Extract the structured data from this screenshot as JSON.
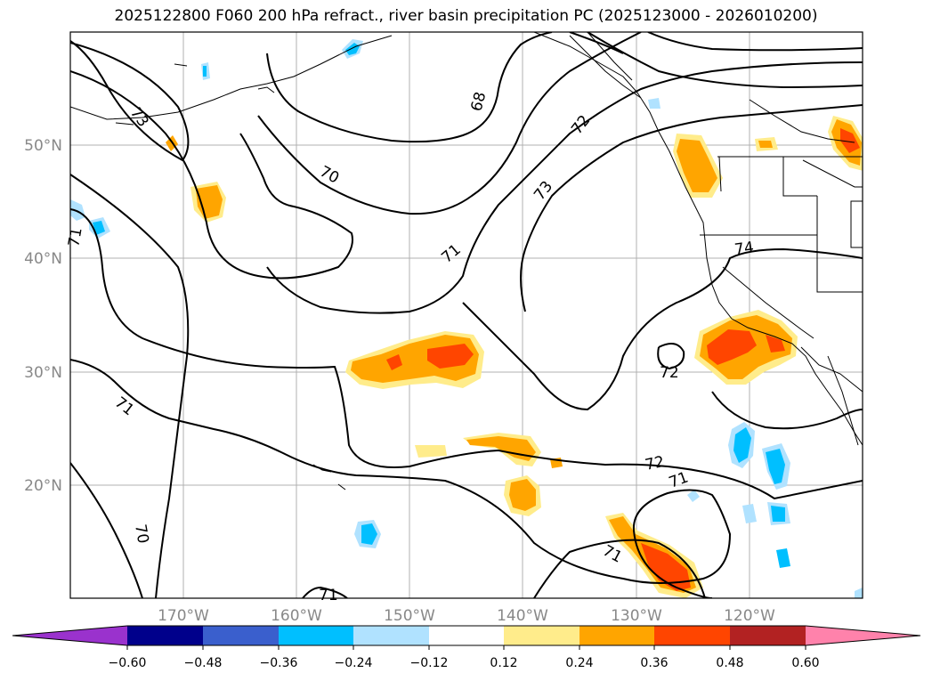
{
  "title": "2025122800 F060 200 hPa refract., river basin precipitation PC (2025123000 - 2026010200)",
  "lat_labels": [
    "50°N",
    "40°N",
    "30°N",
    "20°N"
  ],
  "lon_labels": [
    "170°W",
    "160°W",
    "150°W",
    "140°W",
    "130°W",
    "120°W"
  ],
  "contour_labels": [
    "73",
    "68",
    "72",
    "70",
    "73",
    "71",
    "71",
    "74",
    "72",
    "71",
    "72",
    "71",
    "70",
    "71",
    "71"
  ],
  "colorbar": {
    "ticks": [
      "−0.60",
      "−0.48",
      "−0.36",
      "−0.24",
      "−0.12",
      "0.12",
      "0.24",
      "0.36",
      "0.48",
      "0.60"
    ],
    "colors": [
      "#9a32cd",
      "#00008b",
      "#3a5fcd",
      "#00bfff",
      "#b0e2ff",
      "#ffffff",
      "#ffec8b",
      "#ffa500",
      "#ff4500",
      "#b22222",
      "#ff82ab"
    ]
  },
  "shading_colors": {
    "pos_light": "#ffec8b",
    "pos_mid": "#ffa500",
    "pos_strong": "#ff4500",
    "neg_light": "#b0e2ff",
    "neg_mid": "#00bfff"
  }
}
